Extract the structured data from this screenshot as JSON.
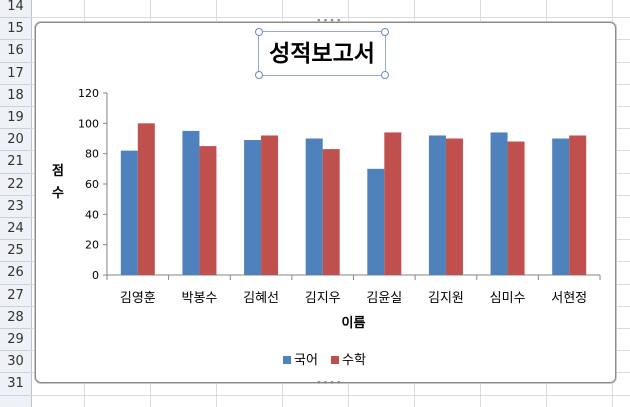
{
  "sheet": {
    "rows": [
      "14",
      "15",
      "16",
      "17",
      "18",
      "19",
      "20",
      "21",
      "22",
      "23",
      "24",
      "25",
      "26",
      "27",
      "28",
      "29",
      "30",
      "31"
    ]
  },
  "chart_data": {
    "type": "bar",
    "title": "성적보고서",
    "xlabel": "이름",
    "ylabel": "점수",
    "categories": [
      "김영훈",
      "박봉수",
      "김혜선",
      "김지우",
      "김윤실",
      "김지원",
      "심미수",
      "서현정"
    ],
    "series": [
      {
        "name": "국어",
        "color": "#4f81bd",
        "values": [
          82,
          95,
          89,
          90,
          70,
          92,
          94,
          90
        ]
      },
      {
        "name": "수학",
        "color": "#c0504d",
        "values": [
          100,
          85,
          92,
          83,
          94,
          90,
          88,
          92
        ]
      }
    ],
    "ylim": [
      0,
      120
    ],
    "yticks": [
      "0",
      "20",
      "40",
      "60",
      "80",
      "100",
      "120"
    ],
    "grid": false,
    "legend": "bottom"
  }
}
